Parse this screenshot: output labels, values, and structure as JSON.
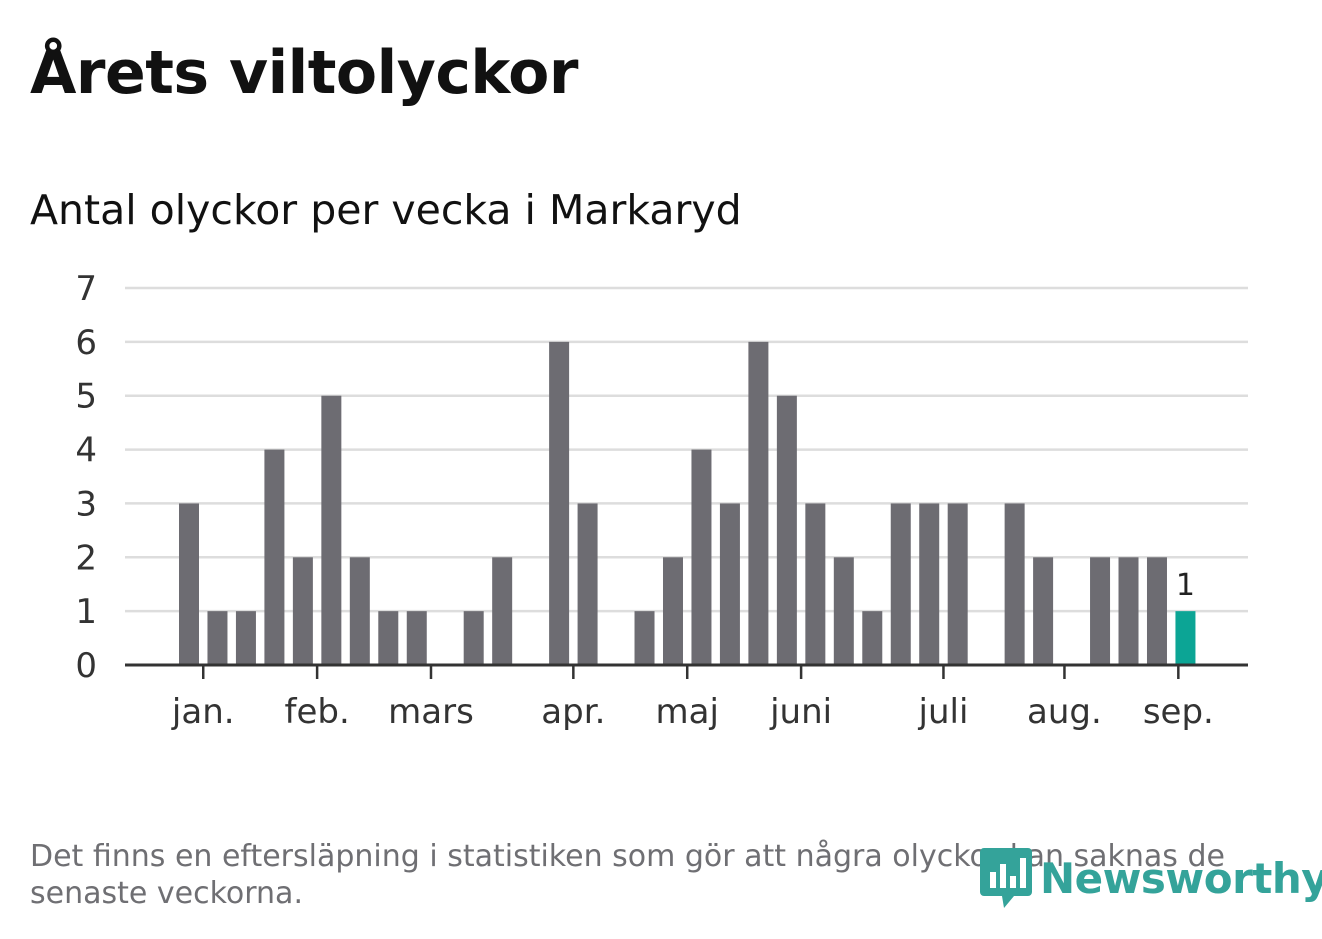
{
  "title": "Årets viltolyckor",
  "subtitle": "Antal olyckor per vecka i Markaryd",
  "footnote": "Det finns en eftersläpning i statistiken som gör att några olyckor kan saknas de senaste veckorna.",
  "brand": "Newsworthy",
  "colors": {
    "bar": "#6d6c72",
    "highlight": "#0ca595",
    "grid": "#dddddd",
    "axis": "#333333",
    "brand": "#34a39a"
  },
  "chart_data": {
    "type": "bar",
    "ylim": [
      0,
      7
    ],
    "yticks": [
      0,
      1,
      2,
      3,
      4,
      5,
      6,
      7
    ],
    "grid": true,
    "values": [
      3,
      1,
      1,
      4,
      2,
      5,
      2,
      1,
      1,
      0,
      1,
      2,
      0,
      6,
      3,
      0,
      1,
      2,
      4,
      3,
      6,
      5,
      3,
      2,
      1,
      3,
      3,
      3,
      0,
      3,
      2,
      0,
      2,
      2,
      2,
      1
    ],
    "highlight_index": 35,
    "highlight_label": "1",
    "month_labels": [
      {
        "label": "jan.",
        "position": 0.5
      },
      {
        "label": "feb.",
        "position": 4.5
      },
      {
        "label": "mars",
        "position": 8.5
      },
      {
        "label": "apr.",
        "position": 13.5
      },
      {
        "label": "maj",
        "position": 17.5
      },
      {
        "label": "juni",
        "position": 21.5
      },
      {
        "label": "juli",
        "position": 26.5
      },
      {
        "label": "aug.",
        "position": 30.75
      },
      {
        "label": "sep.",
        "position": 34.75
      }
    ]
  }
}
